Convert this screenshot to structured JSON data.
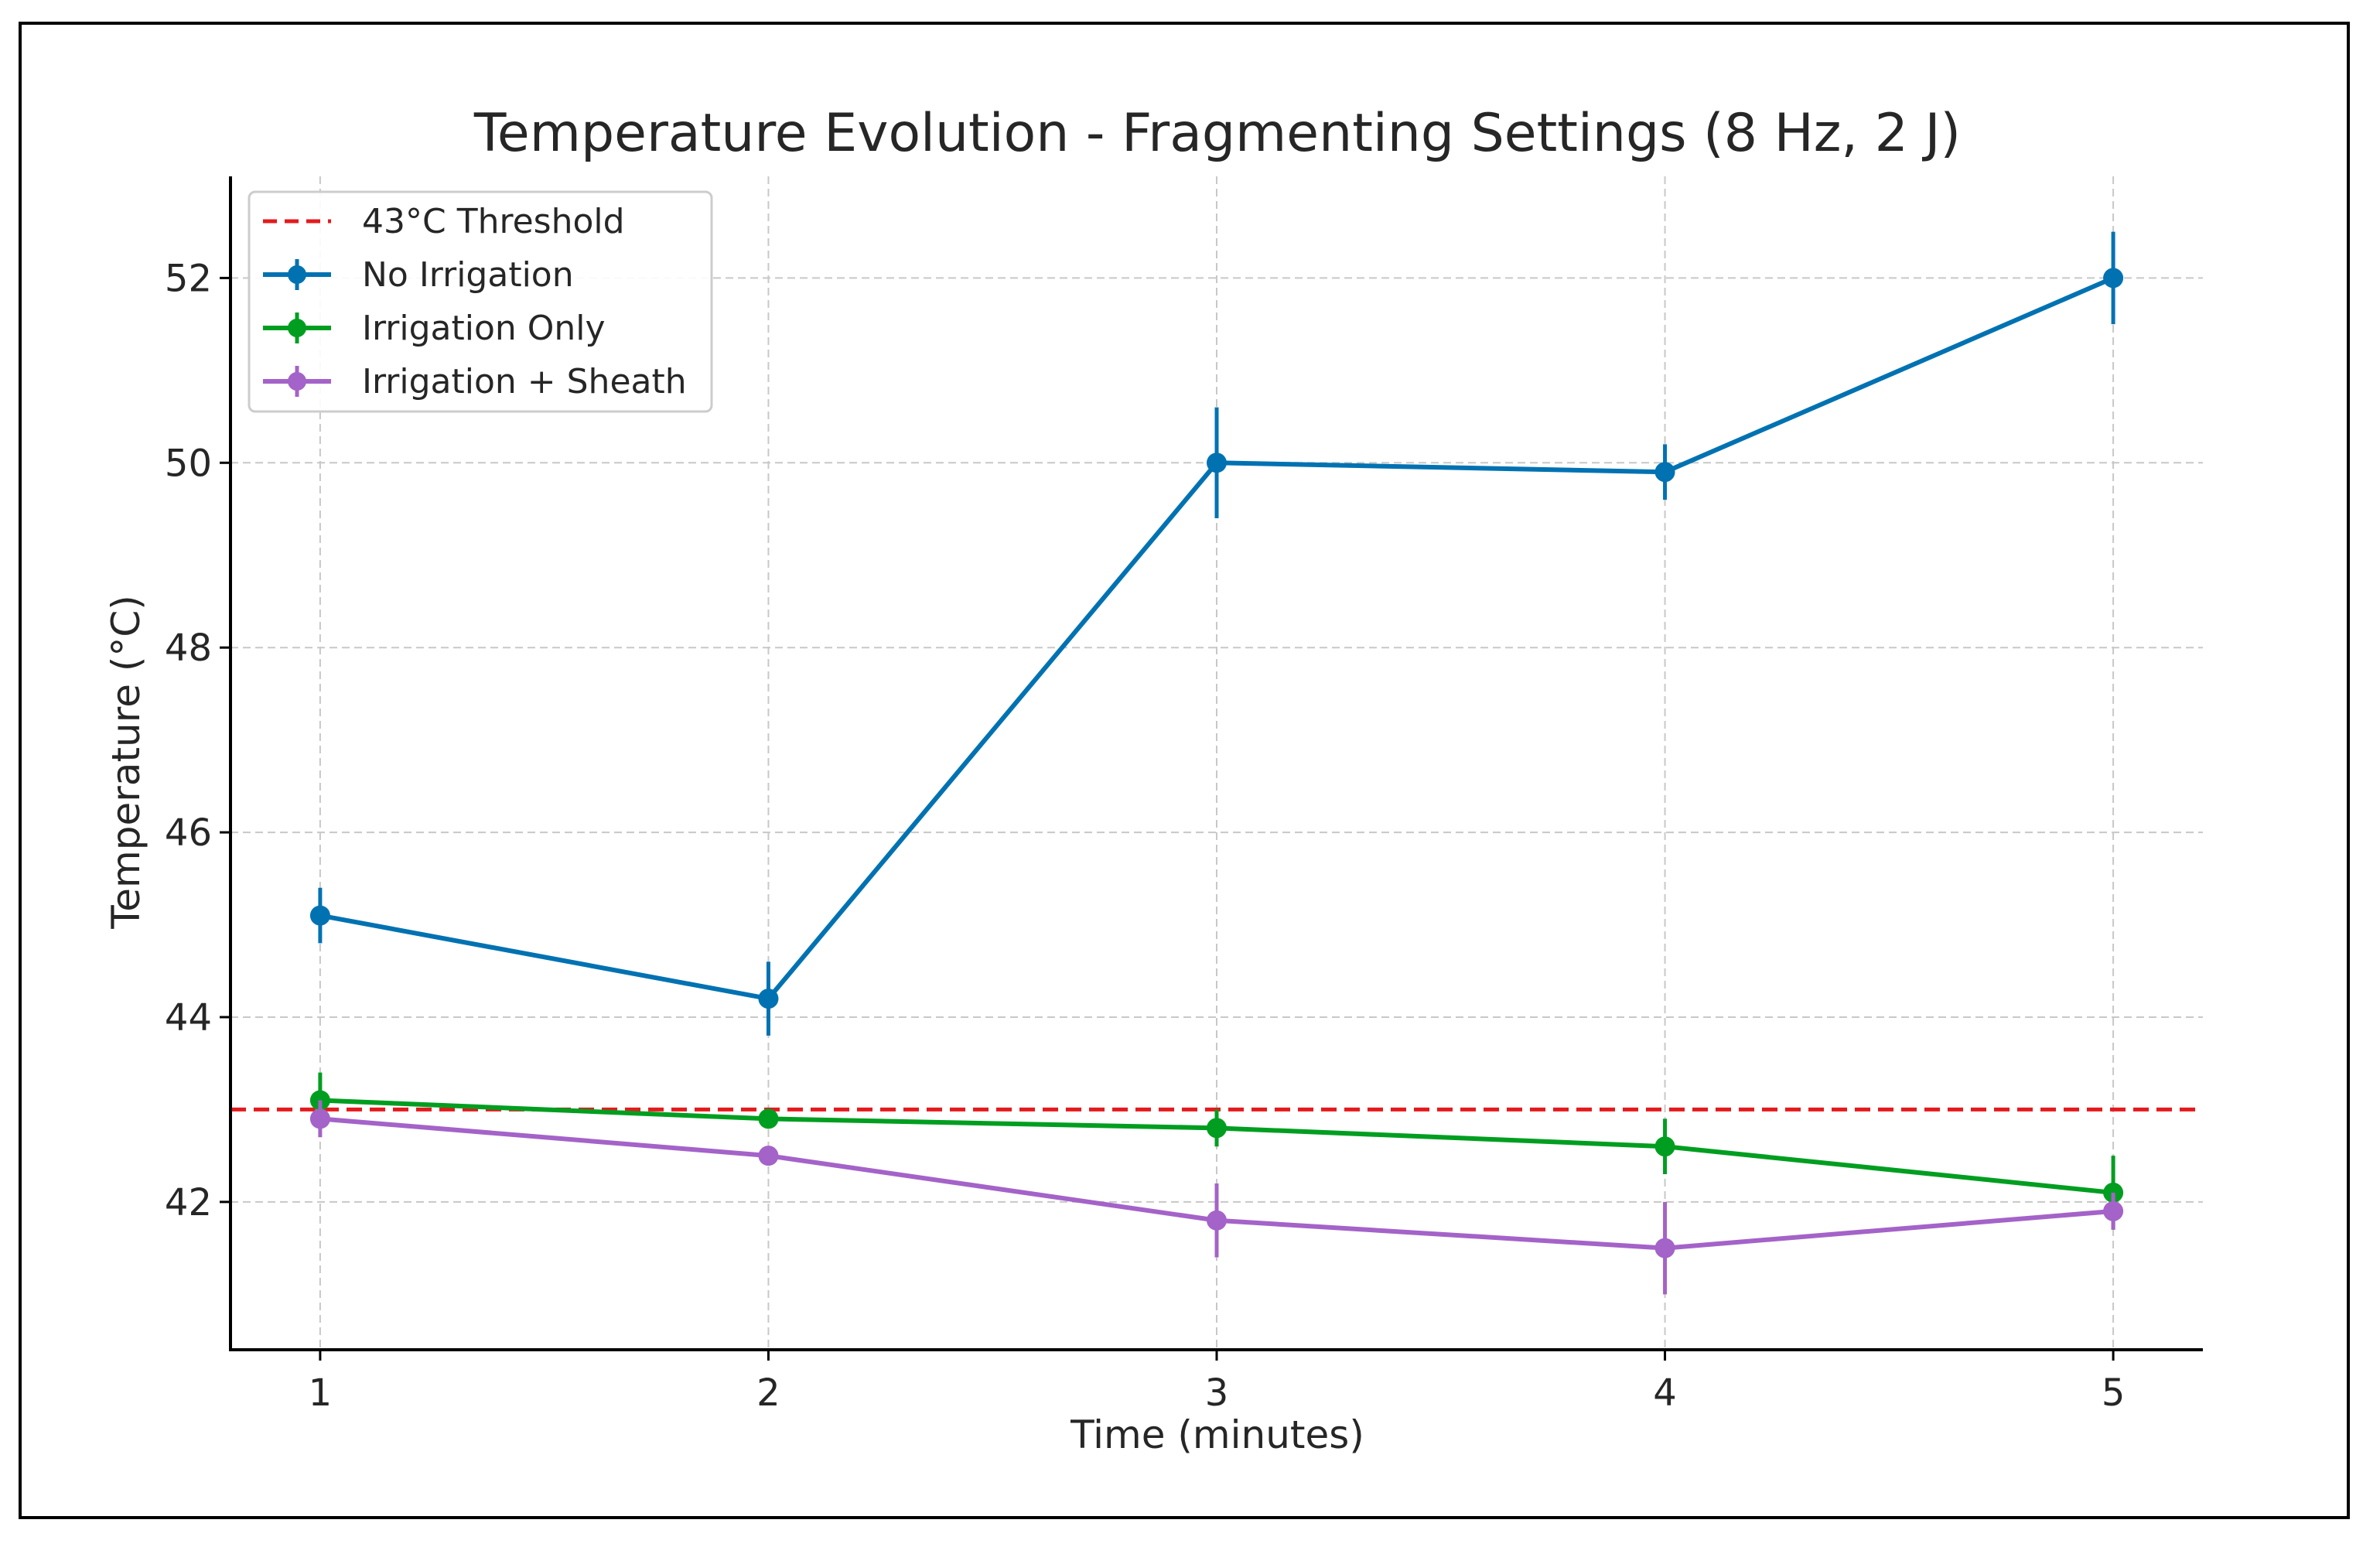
{
  "chart_data": {
    "type": "line",
    "title": "Temperature Evolution - Fragmenting Settings (8 Hz, 2 J)",
    "xlabel": "Time (minutes)",
    "ylabel": "Temperature (°C)",
    "x": [
      1,
      2,
      3,
      4,
      5
    ],
    "x_ticks": [
      "1",
      "2",
      "3",
      "4",
      "5"
    ],
    "y_ticks": [
      "42",
      "44",
      "46",
      "48",
      "50",
      "52"
    ],
    "y_tick_values": [
      42,
      44,
      46,
      48,
      50,
      52
    ],
    "xlim": [
      0.8,
      5.2
    ],
    "ylim": [
      40.4,
      53.1
    ],
    "grid": true,
    "legend_position": "top-left",
    "threshold": {
      "label": "43°C Threshold",
      "value": 43,
      "color": "#e41a1c",
      "style": "dashed"
    },
    "series": [
      {
        "name": "No Irrigation",
        "color": "#0072b2",
        "values": [
          45.1,
          44.2,
          50.0,
          49.9,
          52.0
        ],
        "errors": [
          0.3,
          0.4,
          0.6,
          0.3,
          0.5
        ]
      },
      {
        "name": "Irrigation Only",
        "color": "#009e20",
        "values": [
          43.1,
          42.9,
          42.8,
          42.6,
          42.1
        ],
        "errors": [
          0.3,
          0.1,
          0.2,
          0.3,
          0.4
        ]
      },
      {
        "name": "Irrigation + Sheath",
        "color": "#a463c8",
        "values": [
          42.9,
          42.5,
          41.8,
          41.5,
          41.9
        ],
        "errors": [
          0.2,
          0.1,
          0.4,
          0.5,
          0.2
        ]
      }
    ]
  }
}
